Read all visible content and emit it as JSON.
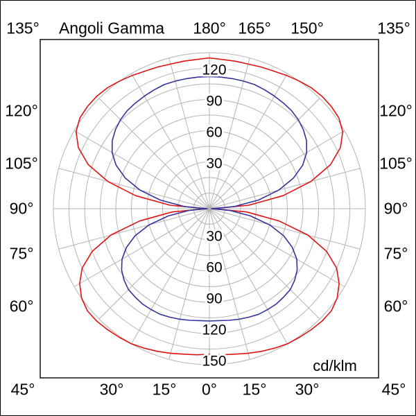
{
  "title": "Angoli Gamma",
  "colors": {
    "background": "#ffffff",
    "frame": "#000000",
    "grid": "#b3b3b3",
    "text": "#000000"
  },
  "chart_data": {
    "type": "polar",
    "title": "Angoli Gamma",
    "unit": "cd/klm",
    "radial_ticks": [
      30,
      60,
      90,
      120,
      150
    ],
    "radial_max": 150,
    "grid": {
      "circle_step": 15,
      "angle_step_deg": 15
    },
    "angle_labels": {
      "corners": {
        "top_left": "135°",
        "top_right": "135°",
        "bottom_left": "45°",
        "bottom_right": "45°"
      },
      "top": [
        "180°",
        "165°",
        "150°"
      ],
      "left": [
        "120°",
        "105°",
        "90°",
        "75°",
        "60°"
      ],
      "right": [
        "120°",
        "105°",
        "90°",
        "75°",
        "60°"
      ],
      "bottom": [
        "30°",
        "15°",
        "0°",
        "15°",
        "30°"
      ]
    },
    "series": [
      {
        "name": "outer-red-curve",
        "color": "#e01212",
        "gamma_deg": [
          0,
          5,
          10,
          15,
          20,
          25,
          30,
          35,
          40,
          45,
          50,
          55,
          60,
          65,
          70,
          75,
          80,
          85,
          90,
          95,
          100,
          105,
          110,
          115,
          120,
          125,
          130,
          135,
          140,
          145,
          150,
          155,
          160,
          165,
          170,
          175,
          180
        ],
        "values": [
          140,
          141,
          142,
          144,
          146,
          148,
          150,
          151,
          152,
          153,
          153,
          150,
          144,
          135,
          120,
          98,
          68,
          36,
          3,
          38,
          72,
          101,
          124,
          139,
          148,
          152,
          153,
          153,
          152,
          150,
          148,
          146,
          145,
          144,
          144,
          144,
          145
        ]
      },
      {
        "name": "inner-blue-curve",
        "color": "#32329b",
        "gamma_deg": [
          0,
          5,
          10,
          15,
          20,
          25,
          30,
          35,
          40,
          45,
          50,
          55,
          60,
          65,
          70,
          75,
          80,
          85,
          90,
          95,
          100,
          105,
          110,
          115,
          120,
          125,
          130,
          135,
          140,
          145,
          150,
          155,
          160,
          165,
          170,
          175,
          180
        ],
        "values": [
          108,
          108,
          109,
          110,
          111,
          112,
          112,
          112,
          111,
          110,
          107,
          103,
          97,
          88,
          76,
          60,
          40,
          20,
          2,
          24,
          48,
          69,
          86,
          99,
          108,
          114,
          118,
          121,
          123,
          124,
          125,
          126,
          127,
          127,
          127,
          127,
          127
        ]
      }
    ]
  }
}
